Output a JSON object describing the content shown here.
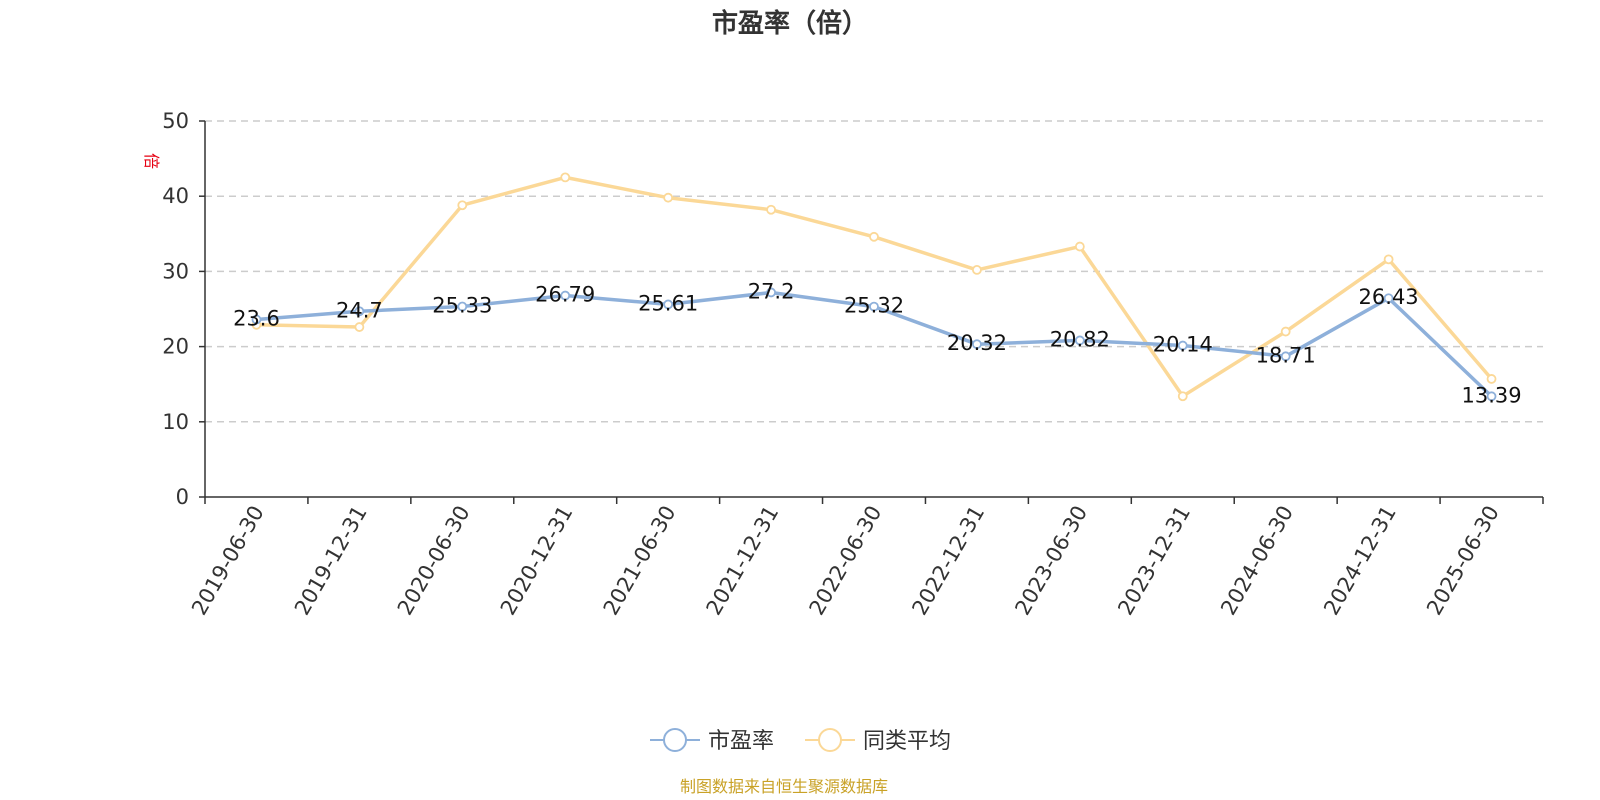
{
  "chart_data": {
    "type": "line",
    "title": "市盈率（倍）",
    "ylabel": "倍",
    "xlabel": "",
    "ylim": [
      0,
      50
    ],
    "yticks": [
      0,
      10,
      20,
      30,
      40,
      50
    ],
    "grid": true,
    "legend_position": "bottom",
    "categories": [
      "2019-06-30",
      "2019-12-31",
      "2020-06-30",
      "2020-12-31",
      "2021-06-30",
      "2021-12-31",
      "2022-06-30",
      "2022-12-31",
      "2023-06-30",
      "2023-12-31",
      "2024-06-30",
      "2024-12-31",
      "2025-06-30"
    ],
    "series": [
      {
        "name": "市盈率",
        "color": "#8eb0da",
        "values": [
          23.6,
          24.7,
          25.33,
          26.79,
          25.61,
          27.2,
          25.32,
          20.32,
          20.82,
          20.14,
          18.71,
          26.43,
          13.39
        ],
        "labels": [
          "23.6",
          "24.7",
          "25.33",
          "26.79",
          "25.61",
          "27.2",
          "25.32",
          "20.32",
          "20.82",
          "20.14",
          "18.71",
          "26.43",
          "13.39"
        ]
      },
      {
        "name": "同类平均",
        "color": "#fbd897",
        "values": [
          22.9,
          22.6,
          38.8,
          42.5,
          39.8,
          38.2,
          34.6,
          30.2,
          33.3,
          13.4,
          22.0,
          31.6,
          15.7
        ]
      }
    ]
  },
  "source_note": "制图数据来自恒生聚源数据库"
}
